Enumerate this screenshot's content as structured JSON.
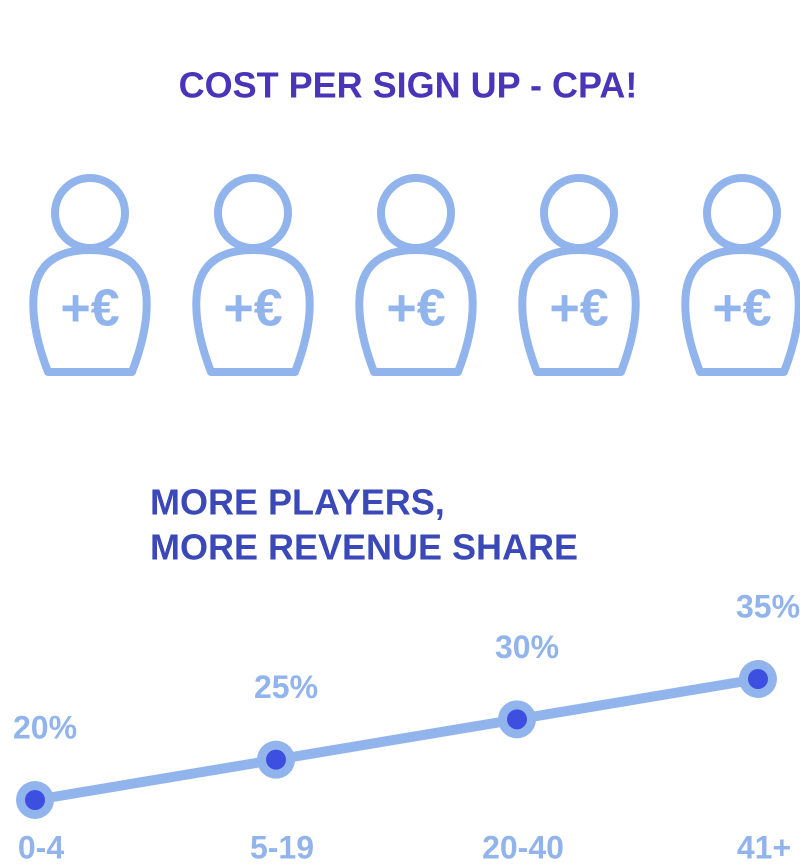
{
  "header": {
    "title": "COST PER SIGN UP - CPA!"
  },
  "icons": [
    {
      "label": "+€"
    },
    {
      "label": "+€"
    },
    {
      "label": "+€"
    },
    {
      "label": "+€"
    },
    {
      "label": "+€"
    }
  ],
  "chart_data": {
    "type": "line",
    "title_lines": [
      "MORE PLAYERS,",
      "MORE REVENUE SHARE"
    ],
    "categories": [
      "0-4",
      "5-19",
      "20-40",
      "41+"
    ],
    "values": [
      20,
      25,
      30,
      35
    ],
    "value_labels": [
      "20%",
      "25%",
      "30%",
      "35%"
    ],
    "color": "#92b4ec",
    "marker_color": "#3d4fe0"
  }
}
